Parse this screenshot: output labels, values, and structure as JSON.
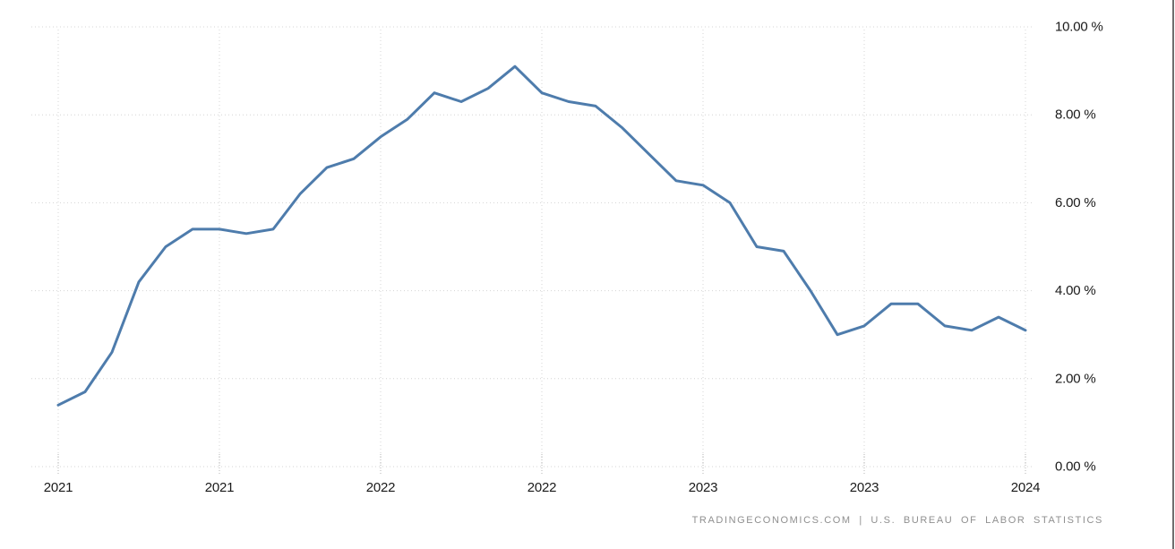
{
  "page": {
    "background": "#ffffff",
    "attribution": "TRADINGECONOMICS.COM | U.S. BUREAU OF LABOR STATISTICS"
  },
  "chart_data": {
    "type": "line",
    "title": "",
    "xlabel": "",
    "ylabel": "",
    "frequency": "monthly",
    "ylim": [
      0,
      10
    ],
    "grid": true,
    "legend": false,
    "x_ticks": [
      {
        "month_index": 0,
        "label": "2021"
      },
      {
        "month_index": 6,
        "label": "2021"
      },
      {
        "month_index": 12,
        "label": "2022"
      },
      {
        "month_index": 18,
        "label": "2022"
      },
      {
        "month_index": 24,
        "label": "2023"
      },
      {
        "month_index": 30,
        "label": "2023"
      },
      {
        "month_index": 36,
        "label": "2024"
      }
    ],
    "y_ticks": [
      {
        "value": 10,
        "label": "10.00 %"
      },
      {
        "value": 8,
        "label": "8.00 %"
      },
      {
        "value": 6,
        "label": "6.00 %"
      },
      {
        "value": 4,
        "label": "4.00 %"
      },
      {
        "value": 2,
        "label": "2.00 %"
      },
      {
        "value": 0,
        "label": "0.00 %"
      }
    ],
    "values": [
      1.4,
      1.7,
      2.6,
      4.2,
      5.0,
      5.4,
      5.4,
      5.3,
      5.4,
      6.2,
      6.8,
      7.0,
      7.5,
      7.9,
      8.5,
      8.3,
      8.6,
      9.1,
      8.5,
      8.3,
      8.2,
      7.7,
      7.1,
      6.5,
      6.4,
      6.0,
      5.0,
      4.9,
      4.0,
      3.0,
      3.2,
      3.7,
      3.7,
      3.2,
      3.1,
      3.4,
      3.1
    ],
    "colors": {
      "line": "#4e7cac",
      "grid": "#d4d4d4",
      "tick_mark": "#b5b5b5",
      "tick_text": "#1a1a1a",
      "attribution_text": "#8f8f8f"
    }
  }
}
